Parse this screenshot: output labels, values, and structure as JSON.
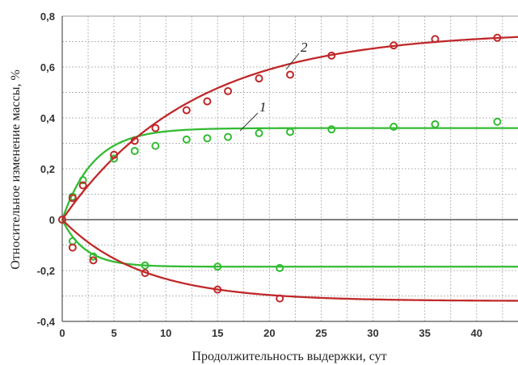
{
  "chart_data": {
    "type": "scatter",
    "xlabel": "Продолжительность выдержки, сут",
    "ylabel": "Относительное изменение массы, %",
    "xlim": [
      0,
      44
    ],
    "ylim": [
      -0.4,
      0.8
    ],
    "x_ticks": [
      "0",
      "5",
      "10",
      "15",
      "20",
      "25",
      "30",
      "35",
      "40"
    ],
    "y_ticks": [
      "-0,4",
      "-0,2",
      "0",
      "0,2",
      "0,4",
      "0,6",
      "0,8"
    ],
    "grid": true,
    "series": [
      {
        "name": "1",
        "color": "#33bb33",
        "points": [
          [
            0,
            0
          ],
          [
            1,
            0.09
          ],
          [
            2,
            0.155
          ],
          [
            5,
            0.24
          ],
          [
            7,
            0.27
          ],
          [
            9,
            0.29
          ],
          [
            12,
            0.315
          ],
          [
            14,
            0.32
          ],
          [
            16,
            0.325
          ],
          [
            19,
            0.34
          ],
          [
            22,
            0.345
          ],
          [
            26,
            0.355
          ],
          [
            32,
            0.365
          ],
          [
            36,
            0.375
          ],
          [
            42,
            0.385
          ]
        ],
        "fit": {
          "A": 0.36,
          "k": 0.33
        }
      },
      {
        "name": "2",
        "color": "#c0292b",
        "points": [
          [
            0,
            0
          ],
          [
            1,
            0.085
          ],
          [
            2,
            0.135
          ],
          [
            5,
            0.255
          ],
          [
            7,
            0.31
          ],
          [
            9,
            0.36
          ],
          [
            12,
            0.43
          ],
          [
            14,
            0.465
          ],
          [
            16,
            0.505
          ],
          [
            19,
            0.555
          ],
          [
            22,
            0.57
          ],
          [
            26,
            0.645
          ],
          [
            32,
            0.685
          ],
          [
            36,
            0.71
          ],
          [
            42,
            0.715
          ]
        ],
        "fit": {
          "A": 0.74,
          "k": 0.08
        }
      },
      {
        "name": "",
        "color": "#33bb33",
        "points": [
          [
            1,
            -0.085
          ],
          [
            3,
            -0.145
          ],
          [
            8,
            -0.18
          ],
          [
            15,
            -0.185
          ],
          [
            21,
            -0.19
          ]
        ],
        "fit": {
          "A": -0.185,
          "k": 0.45
        }
      },
      {
        "name": "",
        "color": "#c0292b",
        "points": [
          [
            1,
            -0.11
          ],
          [
            3,
            -0.16
          ],
          [
            8,
            -0.21
          ],
          [
            15,
            -0.275
          ],
          [
            21,
            -0.31
          ]
        ],
        "fit": {
          "A": -0.32,
          "k": 0.13
        }
      }
    ]
  }
}
